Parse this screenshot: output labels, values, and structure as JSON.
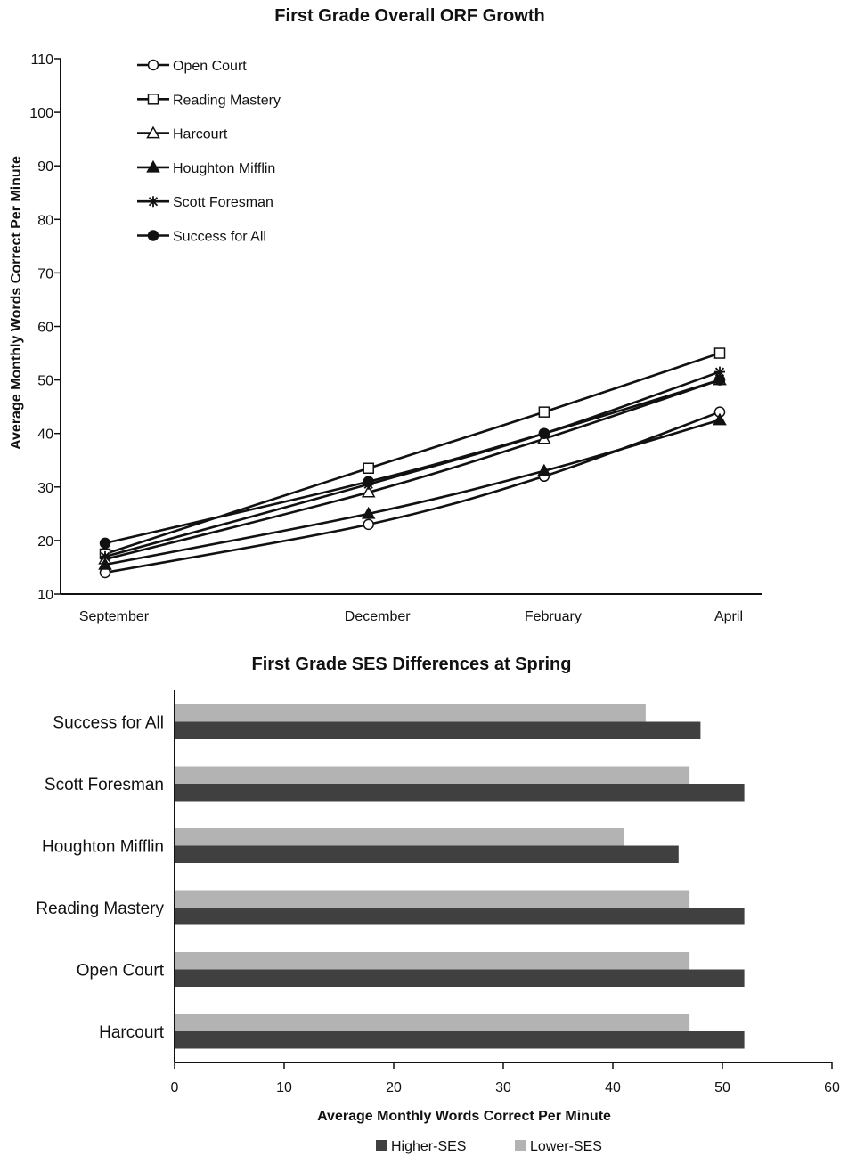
{
  "chart_data": [
    {
      "type": "line",
      "title": "First Grade Overall ORF Growth",
      "xlabel": "",
      "ylabel": "Average Monthly Words Correct Per Minute",
      "x": [
        "September",
        "December",
        "February",
        "April"
      ],
      "x_positions": [
        0,
        3,
        5,
        7
      ],
      "ylim": [
        10,
        110
      ],
      "yticks": [
        10,
        20,
        30,
        40,
        50,
        60,
        70,
        80,
        90,
        100,
        110
      ],
      "grid": false,
      "legend_position": "top-left",
      "series": [
        {
          "name": "Open Court",
          "marker": "circle-open",
          "values": [
            14,
            23,
            32,
            44
          ]
        },
        {
          "name": "Reading Mastery",
          "marker": "square-open",
          "values": [
            17.5,
            33.5,
            44,
            55
          ]
        },
        {
          "name": "Harcourt",
          "marker": "triangle-open",
          "values": [
            16.5,
            29,
            39,
            50
          ]
        },
        {
          "name": "Houghton Mifflin",
          "marker": "triangle-filled",
          "values": [
            15.5,
            25,
            33,
            42.5
          ]
        },
        {
          "name": "Scott Foresman",
          "marker": "asterisk",
          "values": [
            17,
            30.5,
            40,
            51.5
          ]
        },
        {
          "name": "Success for All",
          "marker": "circle-filled",
          "values": [
            19.5,
            31,
            40,
            50
          ]
        }
      ]
    },
    {
      "type": "bar",
      "orientation": "horizontal",
      "title": "First Grade SES Differences at Spring",
      "xlabel": "Average Monthly Words Correct Per Minute",
      "ylabel": "",
      "xlim": [
        0,
        60
      ],
      "xticks": [
        0,
        10,
        20,
        30,
        40,
        50,
        60
      ],
      "grid": false,
      "legend_position": "bottom",
      "categories": [
        "Success for All",
        "Scott Foresman",
        "Houghton Mifflin",
        "Reading Mastery",
        "Open Court",
        "Harcourt"
      ],
      "series": [
        {
          "name": "Lower-SES",
          "color": "#b3b3b3",
          "values": [
            43,
            47,
            41,
            47,
            47,
            47
          ]
        },
        {
          "name": "Higher-SES",
          "color": "#404040",
          "values": [
            48,
            52,
            46,
            52,
            52,
            52
          ]
        }
      ]
    }
  ]
}
